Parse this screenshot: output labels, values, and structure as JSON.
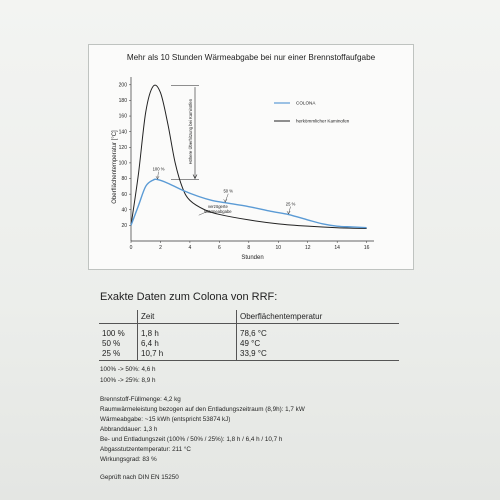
{
  "chart": {
    "title": "Mehr als 10 Stunden Wärmeabgabe bei nur einer Brennstoffaufgabe",
    "ylabel": "Oberflächentemperatur [°C]",
    "xlabel": "Stunden",
    "x_ticks": [
      "0",
      "2",
      "4",
      "6",
      "8",
      "10",
      "12",
      "14",
      "16"
    ],
    "y_ticks": [
      "20",
      "40",
      "60",
      "80",
      "100",
      "120",
      "140",
      "160",
      "180",
      "200"
    ],
    "legend": [
      "COLONA",
      "herkömmlicher Kaminofen"
    ],
    "annotations": {
      "peak_diff": "Höhere Überhitzung bei Kaminöfen",
      "p100": "100 %",
      "p50": "50 %",
      "p25": "25 %",
      "delay": [
        "verzögerte",
        "Wärmeabgabe"
      ]
    }
  },
  "chart_data": {
    "type": "line",
    "title": "Mehr als 10 Stunden Wärmeabgabe bei nur einer Brennstoffaufgabe",
    "xlabel": "Stunden",
    "ylabel": "Oberflächentemperatur [°C]",
    "xlim": [
      0,
      16.5
    ],
    "ylim": [
      0,
      210
    ],
    "grid": false,
    "legend_position": "top-right",
    "series": [
      {
        "name": "COLONA",
        "color": "#5b9bd5",
        "x": [
          0,
          0.5,
          1,
          1.5,
          1.8,
          2.5,
          3.5,
          4.6,
          5.5,
          6.4,
          8,
          9.5,
          10.7,
          12,
          13,
          14,
          15,
          16
        ],
        "y": [
          20,
          45,
          70,
          78,
          78.6,
          74,
          65,
          57,
          52,
          49,
          44,
          38,
          33.9,
          27,
          22,
          19,
          18,
          17
        ]
      },
      {
        "name": "herkömmlicher Kaminofen",
        "color": "#222222",
        "x": [
          0,
          0.5,
          1,
          1.5,
          2,
          2.5,
          3,
          3.5,
          4,
          5,
          6,
          8,
          10,
          12,
          14,
          16
        ],
        "y": [
          20,
          85,
          165,
          198,
          190,
          150,
          100,
          68,
          52,
          40,
          34,
          27,
          22,
          19,
          17,
          16
        ]
      }
    ]
  },
  "doc": {
    "heading": "Exakte Daten zum Colona von RRF:",
    "table": {
      "headers": [
        "",
        "Zeit",
        "Oberflächentemperatur"
      ],
      "rows": [
        [
          "100 %",
          "1,8 h",
          "78,6 °C"
        ],
        [
          "50 %",
          "6,4 h",
          "49 °C"
        ],
        [
          "25 %",
          "10,7 h",
          "33,9 °C"
        ]
      ]
    },
    "transitions": [
      "100% -> 50%: 4,6 h",
      "100% -> 25%: 8,9 h"
    ],
    "specs": [
      "Brennstoff-Füllmenge: 4,2 kg",
      "Raumwärmeleistung bezogen auf den Entladungszeitraum (8,9h): 1,7 kW",
      "Wärmeabgabe: ~15 kWh (entspricht 53874 kJ)",
      "Abbranddauer: 1,3 h",
      "Be- und Entladungszeit (100% / 50% / 25%): 1,8 h / 6,4 h / 10,7 h",
      "Abgasstutzentemperatur: 211 °C",
      "Wirkungsgrad: 83 %"
    ],
    "certification": "Geprüft nach DIN EN 15250"
  }
}
